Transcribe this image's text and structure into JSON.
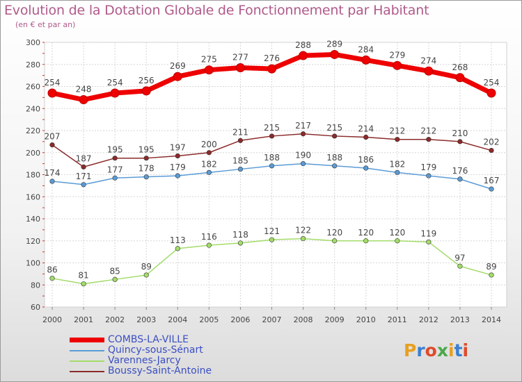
{
  "title": "Evolution de la Dotation Globale de Fonctionnement par Habitant",
  "subtitle": "(en € et par an)",
  "logo_text": "Proxiti",
  "chart_data": {
    "type": "line",
    "title": "Evolution de la Dotation Globale de Fonctionnement par Habitant",
    "subtitle": "(en € et par an)",
    "x": [
      "2000",
      "2001",
      "2002",
      "2003",
      "2004",
      "2005",
      "2006",
      "2007",
      "2008",
      "2009",
      "2010",
      "2011",
      "2012",
      "2013",
      "2014"
    ],
    "ylim": [
      60,
      300
    ],
    "yticks": [
      60,
      80,
      100,
      120,
      140,
      160,
      180,
      200,
      220,
      240,
      260,
      280,
      300
    ],
    "grid": true,
    "legend_position": "bottom-left",
    "series": [
      {
        "name": "COMBS-LA-VILLE",
        "color": "#ee0000",
        "values": [
          254,
          248,
          254,
          256,
          269,
          275,
          277,
          276,
          288,
          289,
          284,
          279,
          274,
          268,
          254
        ]
      },
      {
        "name": "Quincy-sous-Sénart",
        "color": "#5b9bd5",
        "values": [
          174,
          171,
          177,
          178,
          179,
          182,
          185,
          188,
          190,
          188,
          186,
          182,
          179,
          176,
          167
        ]
      },
      {
        "name": "Varennes-Jarcy",
        "color": "#a3dc6a",
        "values": [
          86,
          81,
          85,
          89,
          113,
          116,
          118,
          121,
          122,
          120,
          120,
          120,
          119,
          97,
          89
        ]
      },
      {
        "name": "Boussy-Saint-Antoine",
        "color": "#8b2a2a",
        "values": [
          207,
          187,
          195,
          195,
          197,
          200,
          211,
          215,
          217,
          215,
          214,
          212,
          212,
          210,
          202
        ]
      }
    ]
  }
}
